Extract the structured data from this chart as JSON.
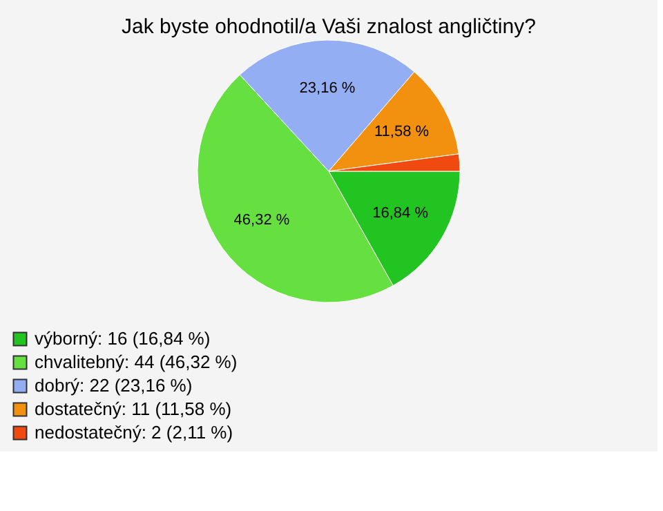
{
  "chart_data": {
    "type": "pie",
    "title": "Jak byste ohodnotil/a Vaši znalost angličtiny?",
    "categories": [
      "výborný: 16 (16,84 %)",
      "chvalitebný: 44 (46,32 %)",
      "dobrý: 22 (23,16 %)",
      "dostatečný: 11 (11,58 %)",
      "nedostatečný: 2 (2,11 %)"
    ],
    "values": [
      16.84,
      46.32,
      23.16,
      11.58,
      2.11
    ],
    "value_labels": [
      "16,84 %",
      "46,32 %",
      "23,16 %",
      "11,58 %",
      null
    ],
    "colors": [
      "#22c422",
      "#66e040",
      "#93aef2",
      "#f29010",
      "#f04a10"
    ],
    "legend": "bottom left"
  }
}
